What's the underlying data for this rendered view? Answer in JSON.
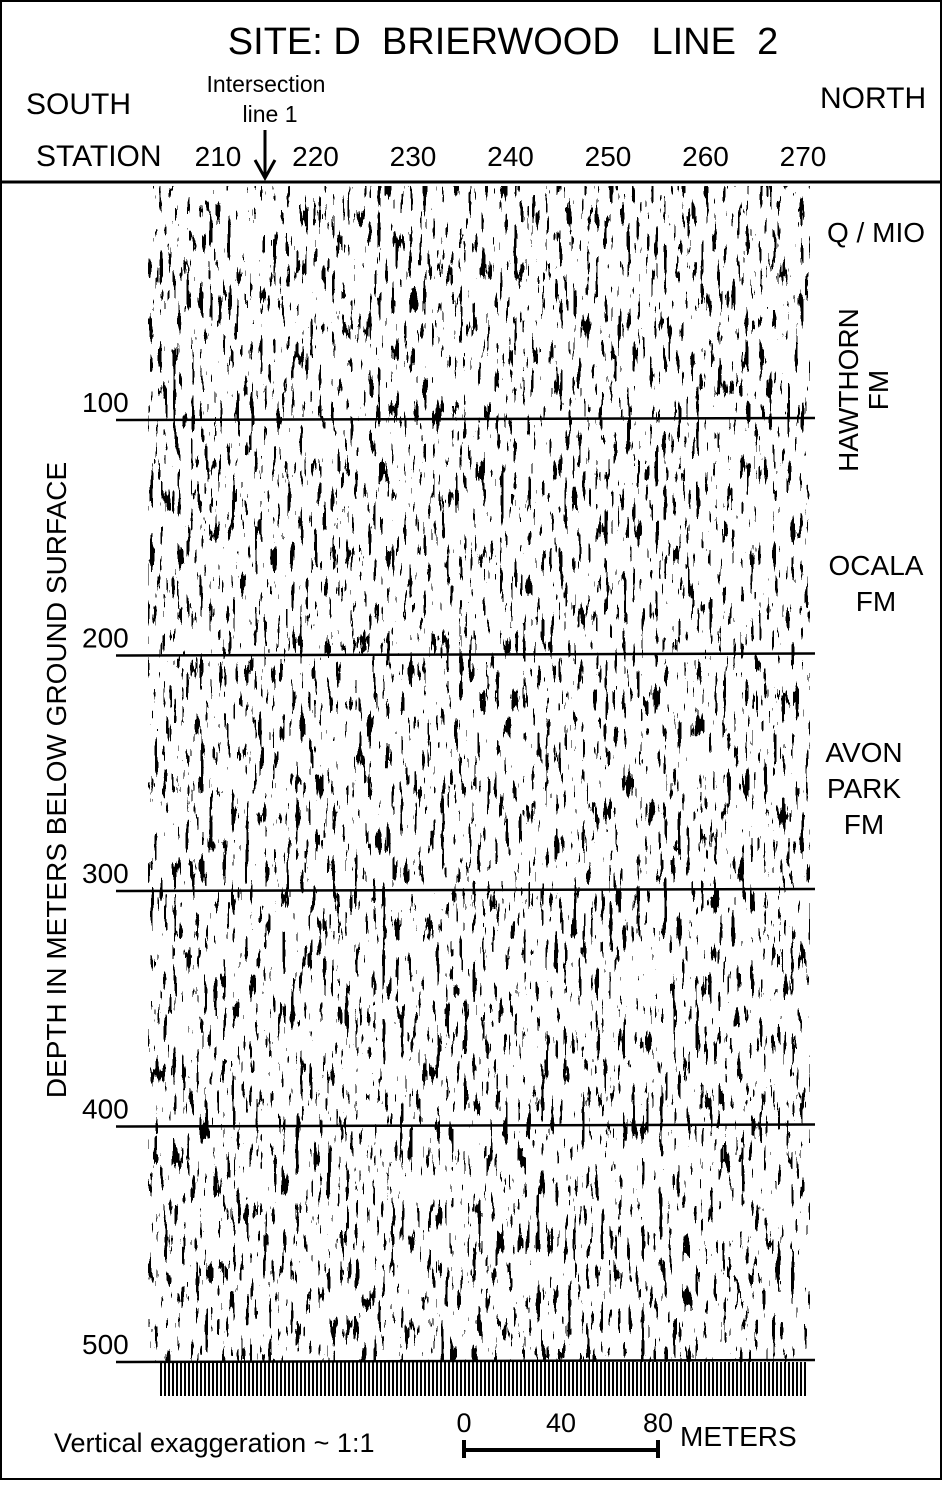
{
  "header": {
    "title": "SITE: D  BRIERWOOD   LINE  2",
    "south": "SOUTH",
    "north": "NORTH",
    "station_label": "STATION",
    "intersection": [
      "Intersection",
      "line 1"
    ],
    "stations": [
      210,
      220,
      230,
      240,
      250,
      260,
      270
    ]
  },
  "depth_axis": {
    "label": "DEPTH IN METERS BELOW GROUND SURFACE",
    "ticks": [
      100,
      200,
      300,
      400,
      500
    ]
  },
  "formations": [
    {
      "lines": [
        "Q / MIO"
      ]
    },
    {
      "lines": [
        "HAWTHORN",
        "FM"
      ]
    },
    {
      "lines": [
        "OCALA",
        "FM"
      ]
    },
    {
      "lines": [
        "AVON",
        "PARK",
        "FM"
      ]
    }
  ],
  "footer": {
    "exaggeration": "Vertical exaggeration ~ 1:1",
    "scale": [
      0,
      40,
      80
    ],
    "unit": "METERS"
  }
}
